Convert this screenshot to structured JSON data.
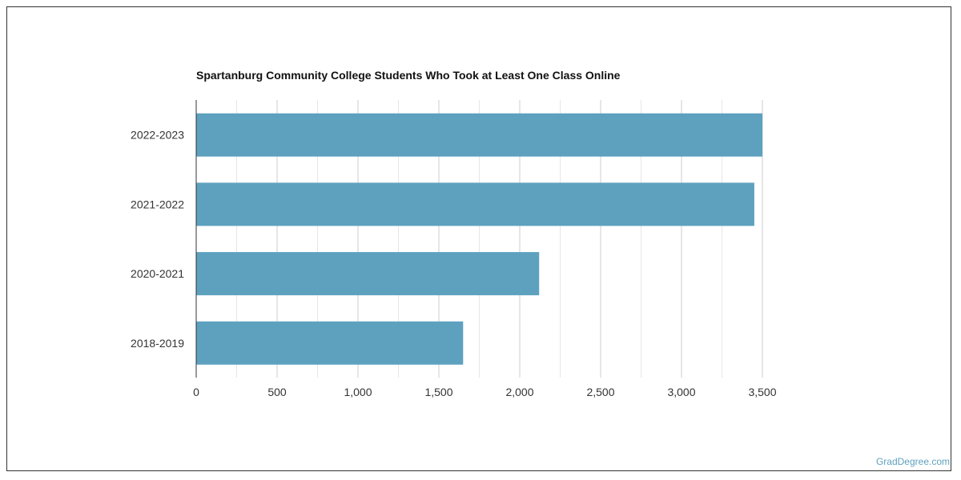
{
  "chart_data": {
    "type": "bar",
    "orientation": "horizontal",
    "title": "Spartanburg Community College Students Who Took at Least One Class Online",
    "categories": [
      "2022-2023",
      "2021-2022",
      "2020-2021",
      "2018-2019"
    ],
    "values": [
      3500,
      3450,
      2120,
      1650
    ],
    "xlim": [
      0,
      3500
    ],
    "xticks": [
      0,
      500,
      1000,
      1500,
      2000,
      2500,
      3000,
      3500
    ],
    "xtick_labels": [
      "0",
      "500",
      "1,000",
      "1,500",
      "2,000",
      "2,500",
      "3,000",
      "3,500"
    ],
    "xlabel": "",
    "ylabel": "",
    "grid": true,
    "bar_color": "#5da1bf"
  },
  "credit": "GradDegree.com"
}
